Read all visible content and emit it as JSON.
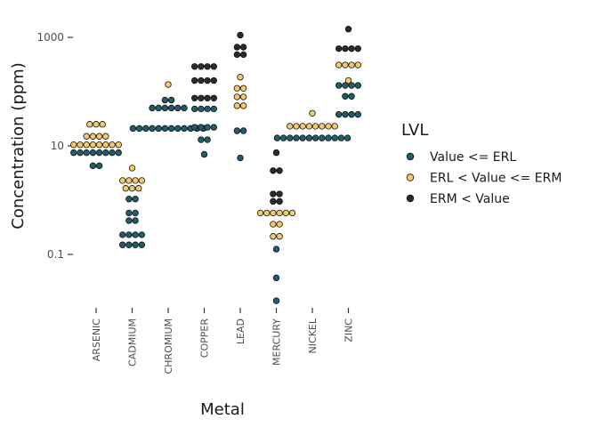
{
  "chart_data": {
    "type": "scatter",
    "subtype": "dotplot",
    "title": "",
    "xlabel": "Metal",
    "ylabel": "Concentration (ppm)",
    "y_scale": "log10",
    "ylim": [
      0.01,
      2000
    ],
    "y_ticks": [
      {
        "value": 0.1,
        "label": "0.1"
      },
      {
        "value": 10,
        "label": "10"
      },
      {
        "value": 1000,
        "label": "1000"
      }
    ],
    "categories": [
      "ARSENIC",
      "CADMIUM",
      "CHROMIUM",
      "COPPER",
      "LEAD",
      "MERCURY",
      "NICKEL",
      "ZINC"
    ],
    "legend": {
      "title": "LVL",
      "position": "right",
      "entries": [
        {
          "key": "low",
          "label": "Value <= ERL",
          "color": "#1f5f6b"
        },
        {
          "key": "mid",
          "label": "ERL < Value <= ERM",
          "color": "#f5c96a"
        },
        {
          "key": "high",
          "label": "ERM < Value",
          "color": "#2b2b2b"
        }
      ]
    },
    "grid": false,
    "series": [
      {
        "name": "ARSENIC",
        "points": [
          {
            "y": 4.3,
            "n": 2,
            "lvl": "low"
          },
          {
            "y": 7.5,
            "n": 8,
            "lvl": "low"
          },
          {
            "y": 10.5,
            "n": 8,
            "lvl": "mid"
          },
          {
            "y": 15,
            "n": 4,
            "lvl": "mid"
          },
          {
            "y": 25,
            "n": 3,
            "lvl": "mid"
          }
        ]
      },
      {
        "name": "CADMIUM",
        "points": [
          {
            "y": 0.15,
            "n": 4,
            "lvl": "low"
          },
          {
            "y": 0.23,
            "n": 4,
            "lvl": "low"
          },
          {
            "y": 0.42,
            "n": 2,
            "lvl": "low"
          },
          {
            "y": 0.58,
            "n": 2,
            "lvl": "low"
          },
          {
            "y": 1.05,
            "n": 2,
            "lvl": "low"
          },
          {
            "y": 1.65,
            "n": 3,
            "lvl": "mid"
          },
          {
            "y": 2.3,
            "n": 4,
            "lvl": "mid"
          },
          {
            "y": 3.9,
            "n": 1,
            "lvl": "mid"
          }
        ]
      },
      {
        "name": "CHROMIUM",
        "points": [
          {
            "y": 21,
            "n": 12,
            "lvl": "low"
          },
          {
            "y": 50,
            "n": 6,
            "lvl": "low"
          },
          {
            "y": 70,
            "n": 2,
            "lvl": "low"
          },
          {
            "y": 135,
            "n": 1,
            "lvl": "mid"
          }
        ]
      },
      {
        "name": "COPPER",
        "points": [
          {
            "y": 7,
            "n": 1,
            "lvl": "low"
          },
          {
            "y": 13,
            "n": 2,
            "lvl": "low"
          },
          {
            "y": 22,
            "n": 4,
            "lvl": "low"
          },
          {
            "y": 48,
            "n": 4,
            "lvl": "low"
          },
          {
            "y": 76,
            "n": 4,
            "lvl": "high"
          },
          {
            "y": 160,
            "n": 4,
            "lvl": "high"
          },
          {
            "y": 290,
            "n": 4,
            "lvl": "high"
          }
        ]
      },
      {
        "name": "LEAD",
        "points": [
          {
            "y": 6,
            "n": 1,
            "lvl": "low"
          },
          {
            "y": 19,
            "n": 2,
            "lvl": "low"
          },
          {
            "y": 55,
            "n": 2,
            "lvl": "mid"
          },
          {
            "y": 80,
            "n": 2,
            "lvl": "mid"
          },
          {
            "y": 115,
            "n": 2,
            "lvl": "mid"
          },
          {
            "y": 185,
            "n": 1,
            "lvl": "mid"
          },
          {
            "y": 480,
            "n": 2,
            "lvl": "high"
          },
          {
            "y": 660,
            "n": 2,
            "lvl": "high"
          },
          {
            "y": 1100,
            "n": 1,
            "lvl": "high"
          }
        ]
      },
      {
        "name": "MERCURY",
        "points": [
          {
            "y": 0.014,
            "n": 1,
            "lvl": "low"
          },
          {
            "y": 0.037,
            "n": 1,
            "lvl": "low"
          },
          {
            "y": 0.125,
            "n": 1,
            "lvl": "low"
          },
          {
            "y": 0.215,
            "n": 2,
            "lvl": "mid"
          },
          {
            "y": 0.36,
            "n": 2,
            "lvl": "mid"
          },
          {
            "y": 0.58,
            "n": 6,
            "lvl": "mid"
          },
          {
            "y": 0.95,
            "n": 2,
            "lvl": "high"
          },
          {
            "y": 1.3,
            "n": 2,
            "lvl": "high"
          },
          {
            "y": 3.5,
            "n": 2,
            "lvl": "high"
          },
          {
            "y": 7.5,
            "n": 1,
            "lvl": "high"
          }
        ]
      },
      {
        "name": "NICKEL",
        "points": [
          {
            "y": 14,
            "n": 12,
            "lvl": "low"
          },
          {
            "y": 23,
            "n": 8,
            "lvl": "mid"
          },
          {
            "y": 40,
            "n": 1,
            "lvl": "mid"
          }
        ]
      },
      {
        "name": "ZINC",
        "points": [
          {
            "y": 38,
            "n": 4,
            "lvl": "low"
          },
          {
            "y": 82,
            "n": 2,
            "lvl": "low"
          },
          {
            "y": 130,
            "n": 4,
            "lvl": "low"
          },
          {
            "y": 160,
            "n": 1,
            "lvl": "mid"
          },
          {
            "y": 310,
            "n": 4,
            "lvl": "mid"
          },
          {
            "y": 620,
            "n": 4,
            "lvl": "high"
          },
          {
            "y": 1420,
            "n": 1,
            "lvl": "high"
          }
        ]
      }
    ]
  }
}
